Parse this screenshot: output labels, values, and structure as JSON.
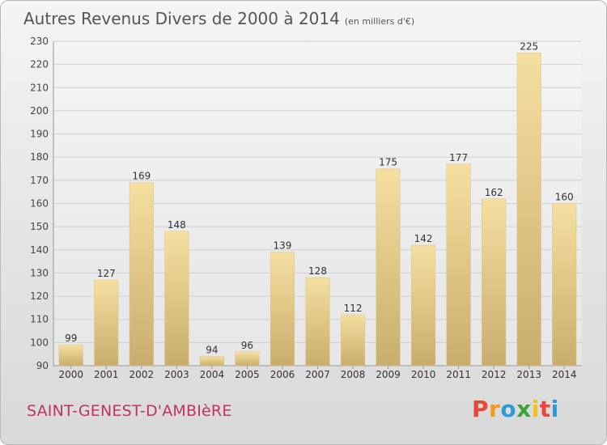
{
  "page": {
    "title": "Autres Revenus Divers de 2000 à 2014",
    "unit": "(en milliers d'€)",
    "commune": "SAINT-GENEST-D'AMBIèRE",
    "logo_text": "Proxiti",
    "logo_colors": [
      "#e8483a",
      "#f29a1f",
      "#2f9ad6",
      "#3aa33a",
      "#f2c218",
      "#e8483a",
      "#2f9ad6"
    ]
  },
  "chart_data": {
    "type": "bar",
    "categories": [
      "2000",
      "2001",
      "2002",
      "2003",
      "2004",
      "2005",
      "2006",
      "2007",
      "2008",
      "2009",
      "2010",
      "2011",
      "2012",
      "2013",
      "2014"
    ],
    "values": [
      99,
      127,
      169,
      148,
      94,
      96,
      139,
      128,
      112,
      175,
      142,
      177,
      162,
      225,
      160
    ],
    "data_labels": [
      "99",
      "127",
      "169",
      "148",
      "94",
      "96",
      "139",
      "128",
      "112",
      "175",
      "142",
      "177",
      "162",
      "225",
      "160"
    ],
    "title": "Autres Revenus Divers de 2000 à 2014",
    "xlabel": "",
    "ylabel": "",
    "ylim": [
      90,
      230
    ],
    "yticks": [
      90,
      100,
      110,
      120,
      130,
      140,
      150,
      160,
      170,
      180,
      190,
      200,
      210,
      220,
      230
    ],
    "ytick_labels": [
      "90",
      "100",
      "110",
      "120",
      "130",
      "140",
      "150",
      "160",
      "170",
      "180",
      "190",
      "200",
      "210",
      "220",
      "230"
    ],
    "grid": true,
    "legend": "none",
    "bar_color_light": "#f5dfa0",
    "bar_color_dark": "#c8ad6e",
    "grid_color": "#cfcfcf"
  }
}
